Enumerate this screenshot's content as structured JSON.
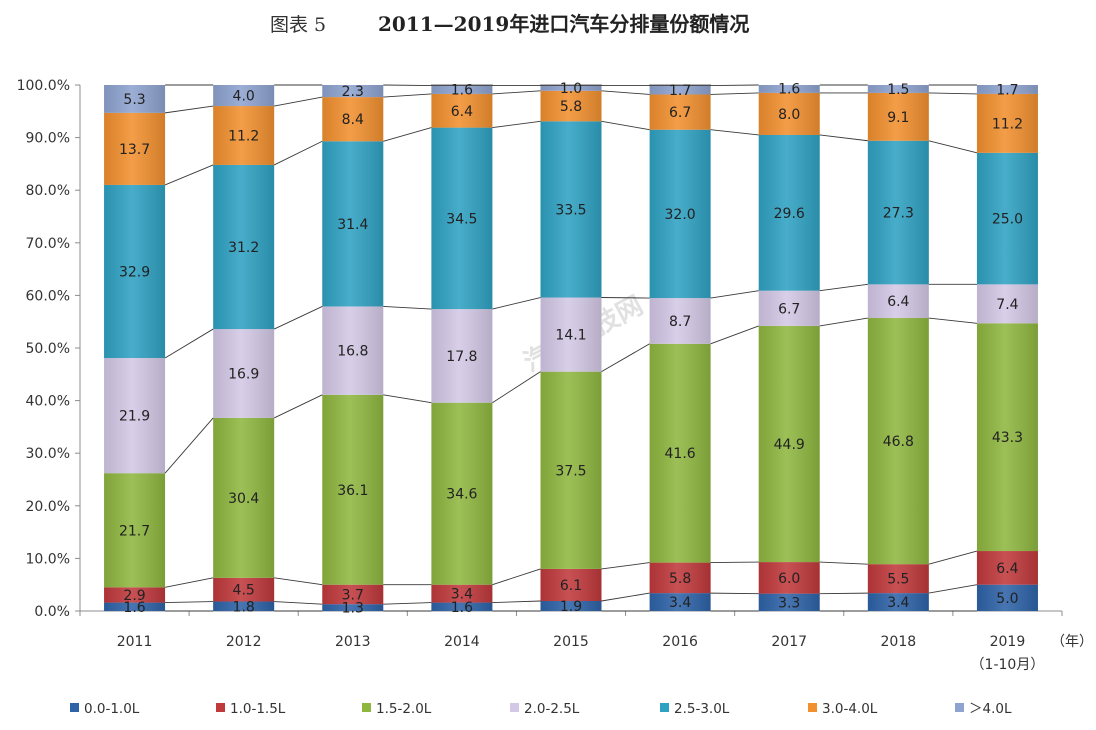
{
  "title": {
    "prefix": "图表 5",
    "text": "2011—2019年进口汽车分排量份额情况"
  },
  "watermark": "汽车科技网",
  "chart_data": {
    "type": "bar",
    "stacked": true,
    "percent": true,
    "categories": [
      "2011",
      "2012",
      "2013",
      "2014",
      "2015",
      "2016",
      "2017",
      "2018",
      "2019"
    ],
    "category_sublabels": [
      "",
      "",
      "",
      "",
      "",
      "",
      "",
      "",
      "（1-10月）"
    ],
    "x_unit_label": "（年）",
    "ylim": [
      0,
      100
    ],
    "yticks": [
      "0.0%",
      "10.0%",
      "20.0%",
      "30.0%",
      "40.0%",
      "50.0%",
      "60.0%",
      "70.0%",
      "80.0%",
      "90.0%",
      "100.0%"
    ],
    "grid": false,
    "legend_position": "bottom",
    "series": [
      {
        "name": "0.0-1.0L",
        "color": "#2e63a8",
        "values": [
          1.6,
          1.8,
          1.3,
          1.6,
          1.9,
          3.4,
          3.3,
          3.4,
          5.0
        ]
      },
      {
        "name": "1.0-1.5L",
        "color": "#c0393c",
        "values": [
          2.9,
          4.5,
          3.7,
          3.4,
          6.1,
          5.8,
          6.0,
          5.5,
          6.4
        ]
      },
      {
        "name": "1.5-2.0L",
        "color": "#8fb740",
        "values": [
          21.7,
          30.4,
          36.1,
          34.6,
          37.5,
          41.6,
          44.9,
          46.8,
          43.3
        ]
      },
      {
        "name": "2.0-2.5L",
        "color": "#d3c8e6",
        "values": [
          21.9,
          16.9,
          16.8,
          17.8,
          14.1,
          8.7,
          6.7,
          6.4,
          7.4
        ]
      },
      {
        "name": "2.5-3.0L",
        "color": "#2fa2c3",
        "values": [
          32.9,
          31.2,
          31.4,
          34.5,
          33.5,
          32.0,
          29.6,
          27.3,
          25.0
        ]
      },
      {
        "name": "3.0-4.0L",
        "color": "#f2902f",
        "values": [
          13.7,
          11.2,
          8.4,
          6.4,
          5.8,
          6.7,
          8.0,
          9.1,
          11.2
        ]
      },
      {
        "name": "＞4.0L",
        "color": "#8ea3cf",
        "values": [
          5.3,
          4.0,
          2.3,
          1.6,
          1.0,
          1.7,
          1.6,
          1.5,
          1.7
        ]
      }
    ]
  }
}
